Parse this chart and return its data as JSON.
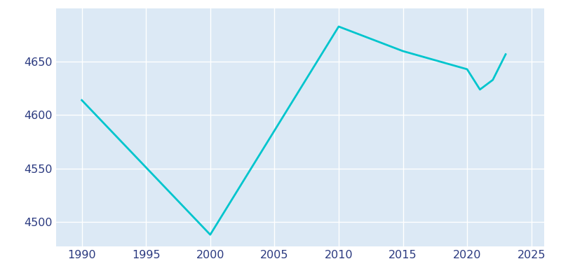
{
  "years": [
    1990,
    2000,
    2010,
    2015,
    2020,
    2021,
    2022,
    2023
  ],
  "population": [
    4614,
    4488,
    4683,
    4660,
    4643,
    4624,
    4633,
    4657
  ],
  "line_color": "#00C5CD",
  "axes_background_color": "#dce9f5",
  "fig_background_color": "#ffffff",
  "grid_color": "#ffffff",
  "text_color": "#2b3a80",
  "xlim": [
    1988,
    2026
  ],
  "ylim": [
    4477,
    4700
  ],
  "xticks": [
    1990,
    1995,
    2000,
    2005,
    2010,
    2015,
    2020,
    2025
  ],
  "yticks": [
    4500,
    4550,
    4600,
    4650
  ],
  "linewidth": 2.0,
  "tick_labelsize": 11.5
}
